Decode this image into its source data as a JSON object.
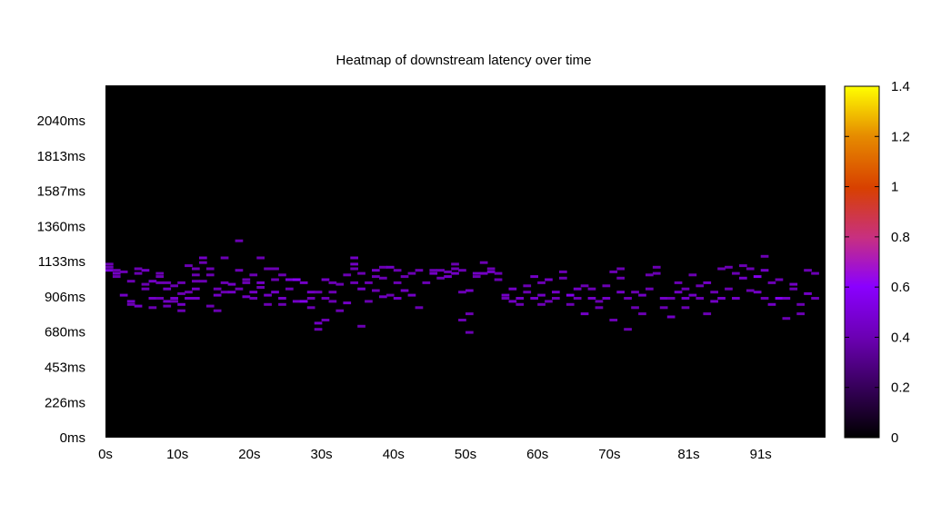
{
  "chart_data": {
    "type": "heatmap",
    "title": "Heatmap of downstream latency over time",
    "xlabel": "",
    "ylabel": "",
    "x_unit": "s",
    "y_unit": "ms",
    "xlim": [
      0,
      100
    ],
    "ylim": [
      0,
      2268
    ],
    "x_ticks": [
      "0s",
      "10s",
      "20s",
      "30s",
      "40s",
      "50s",
      "60s",
      "70s",
      "81s",
      "91s"
    ],
    "x_tick_values": [
      0,
      10,
      20,
      30,
      40,
      50,
      60,
      70,
      81,
      91
    ],
    "y_ticks": [
      "0ms",
      "226ms",
      "453ms",
      "680ms",
      "906ms",
      "1133ms",
      "1360ms",
      "1587ms",
      "1813ms",
      "2040ms"
    ],
    "y_tick_values": [
      0,
      226,
      453,
      680,
      906,
      1133,
      1360,
      1587,
      1813,
      2040
    ],
    "colorbar": {
      "range": [
        0,
        1.4
      ],
      "ticks": [
        "0",
        "0.2",
        "0.4",
        "0.6",
        "0.8",
        "1",
        "1.2",
        "1.4"
      ],
      "tick_values": [
        0,
        0.2,
        0.4,
        0.6,
        0.8,
        1.0,
        1.2,
        1.4
      ],
      "colormap": [
        "#000000",
        "#7a00c8",
        "#c83200",
        "#e68c00",
        "#ffff00"
      ]
    },
    "cell_width_s": 1,
    "cell_height_ms": 12,
    "background_color": "#000000",
    "cells": [
      [
        0,
        1100,
        0.4
      ],
      [
        0,
        1120,
        0.4
      ],
      [
        0,
        1080,
        0.5
      ],
      [
        1,
        1060,
        0.45
      ],
      [
        1,
        1080,
        0.4
      ],
      [
        1,
        1040,
        0.4
      ],
      [
        2,
        1070,
        0.4
      ],
      [
        2,
        920,
        0.45
      ],
      [
        3,
        880,
        0.45
      ],
      [
        3,
        860,
        0.4
      ],
      [
        3,
        1010,
        0.4
      ],
      [
        4,
        850,
        0.45
      ],
      [
        4,
        1060,
        0.4
      ],
      [
        4,
        1090,
        0.4
      ],
      [
        5,
        1080,
        0.45
      ],
      [
        5,
        990,
        0.4
      ],
      [
        5,
        960,
        0.4
      ],
      [
        6,
        900,
        0.45
      ],
      [
        6,
        840,
        0.4
      ],
      [
        6,
        1010,
        0.45
      ],
      [
        7,
        900,
        0.4
      ],
      [
        7,
        1000,
        0.4
      ],
      [
        7,
        1040,
        0.4
      ],
      [
        7,
        1060,
        0.4
      ],
      [
        8,
        880,
        0.45
      ],
      [
        8,
        850,
        0.4
      ],
      [
        8,
        960,
        0.45
      ],
      [
        8,
        1000,
        0.4
      ],
      [
        9,
        900,
        0.45
      ],
      [
        9,
        880,
        0.4
      ],
      [
        9,
        980,
        0.4
      ],
      [
        10,
        820,
        0.4
      ],
      [
        10,
        860,
        0.45
      ],
      [
        10,
        930,
        0.4
      ],
      [
        10,
        1000,
        0.4
      ],
      [
        11,
        900,
        0.45
      ],
      [
        11,
        940,
        0.4
      ],
      [
        11,
        1110,
        0.4
      ],
      [
        12,
        960,
        0.45
      ],
      [
        12,
        1050,
        0.4
      ],
      [
        12,
        1010,
        0.4
      ],
      [
        12,
        1090,
        0.4
      ],
      [
        12,
        900,
        0.45
      ],
      [
        13,
        1160,
        0.45
      ],
      [
        13,
        1010,
        0.4
      ],
      [
        13,
        1130,
        0.4
      ],
      [
        14,
        1050,
        0.4
      ],
      [
        14,
        1090,
        0.4
      ],
      [
        14,
        850,
        0.4
      ],
      [
        15,
        920,
        0.45
      ],
      [
        15,
        960,
        0.4
      ],
      [
        15,
        820,
        0.4
      ],
      [
        16,
        940,
        0.4
      ],
      [
        16,
        1000,
        0.4
      ],
      [
        16,
        1160,
        0.4
      ],
      [
        17,
        940,
        0.45
      ],
      [
        17,
        990,
        0.45
      ],
      [
        18,
        960,
        0.4
      ],
      [
        18,
        1080,
        0.4
      ],
      [
        18,
        1270,
        0.4
      ],
      [
        19,
        910,
        0.45
      ],
      [
        19,
        1020,
        0.4
      ],
      [
        19,
        1000,
        0.4
      ],
      [
        20,
        940,
        0.45
      ],
      [
        20,
        1050,
        0.4
      ],
      [
        20,
        900,
        0.4
      ],
      [
        21,
        1000,
        0.45
      ],
      [
        21,
        970,
        0.4
      ],
      [
        21,
        1160,
        0.4
      ],
      [
        22,
        920,
        0.45
      ],
      [
        22,
        1090,
        0.4
      ],
      [
        22,
        860,
        0.4
      ],
      [
        23,
        1020,
        0.4
      ],
      [
        23,
        940,
        0.45
      ],
      [
        23,
        1090,
        0.4
      ],
      [
        24,
        1050,
        0.4
      ],
      [
        24,
        900,
        0.45
      ],
      [
        24,
        860,
        0.4
      ],
      [
        25,
        1020,
        0.5
      ],
      [
        25,
        960,
        0.4
      ],
      [
        26,
        1020,
        0.6
      ],
      [
        26,
        880,
        0.45
      ],
      [
        27,
        880,
        0.55
      ],
      [
        27,
        1000,
        0.45
      ],
      [
        28,
        940,
        0.45
      ],
      [
        28,
        900,
        0.4
      ],
      [
        28,
        840,
        0.4
      ],
      [
        29,
        740,
        0.45
      ],
      [
        29,
        700,
        0.4
      ],
      [
        29,
        940,
        0.4
      ],
      [
        30,
        760,
        0.4
      ],
      [
        30,
        1020,
        0.45
      ],
      [
        30,
        900,
        0.4
      ],
      [
        31,
        940,
        0.4
      ],
      [
        31,
        880,
        0.4
      ],
      [
        31,
        1000,
        0.4
      ],
      [
        32,
        990,
        0.4
      ],
      [
        32,
        820,
        0.4
      ],
      [
        33,
        1050,
        0.4
      ],
      [
        33,
        870,
        0.45
      ],
      [
        34,
        1120,
        0.45
      ],
      [
        34,
        1160,
        0.45
      ],
      [
        34,
        1090,
        0.4
      ],
      [
        34,
        1000,
        0.4
      ],
      [
        35,
        720,
        0.4
      ],
      [
        35,
        960,
        0.45
      ],
      [
        35,
        1060,
        0.4
      ],
      [
        36,
        880,
        0.4
      ],
      [
        36,
        1000,
        0.4
      ],
      [
        37,
        1080,
        0.45
      ],
      [
        37,
        1040,
        0.4
      ],
      [
        37,
        950,
        0.4
      ],
      [
        38,
        910,
        0.45
      ],
      [
        38,
        1100,
        0.4
      ],
      [
        38,
        1030,
        0.4
      ],
      [
        39,
        1100,
        0.45
      ],
      [
        39,
        920,
        0.4
      ],
      [
        40,
        1000,
        0.4
      ],
      [
        40,
        900,
        0.45
      ],
      [
        40,
        1080,
        0.4
      ],
      [
        41,
        950,
        0.45
      ],
      [
        41,
        1040,
        0.4
      ],
      [
        42,
        1060,
        0.4
      ],
      [
        42,
        920,
        0.45
      ],
      [
        43,
        1080,
        0.4
      ],
      [
        43,
        840,
        0.4
      ],
      [
        44,
        1000,
        0.4
      ],
      [
        45,
        1060,
        0.45
      ],
      [
        45,
        1080,
        0.4
      ],
      [
        46,
        1080,
        0.4
      ],
      [
        46,
        1030,
        0.4
      ],
      [
        47,
        1040,
        0.45
      ],
      [
        47,
        1070,
        0.4
      ],
      [
        48,
        1060,
        0.45
      ],
      [
        48,
        1120,
        0.4
      ],
      [
        48,
        1090,
        0.4
      ],
      [
        49,
        1080,
        0.4
      ],
      [
        49,
        940,
        0.4
      ],
      [
        49,
        760,
        0.4
      ],
      [
        50,
        950,
        0.45
      ],
      [
        50,
        680,
        0.4
      ],
      [
        50,
        800,
        0.4
      ],
      [
        51,
        1060,
        0.45
      ],
      [
        51,
        1040,
        0.4
      ],
      [
        52,
        1060,
        0.45
      ],
      [
        52,
        1130,
        0.4
      ],
      [
        53,
        1070,
        0.45
      ],
      [
        53,
        1090,
        0.4
      ],
      [
        54,
        1060,
        0.4
      ],
      [
        54,
        1020,
        0.4
      ],
      [
        55,
        920,
        0.45
      ],
      [
        55,
        900,
        0.4
      ],
      [
        56,
        960,
        0.45
      ],
      [
        56,
        880,
        0.45
      ],
      [
        57,
        900,
        0.45
      ],
      [
        57,
        860,
        0.4
      ],
      [
        58,
        940,
        0.4
      ],
      [
        58,
        980,
        0.4
      ],
      [
        59,
        900,
        0.45
      ],
      [
        59,
        1040,
        0.45
      ],
      [
        60,
        920,
        0.45
      ],
      [
        60,
        1000,
        0.4
      ],
      [
        60,
        860,
        0.4
      ],
      [
        61,
        880,
        0.4
      ],
      [
        61,
        1020,
        0.45
      ],
      [
        62,
        940,
        0.45
      ],
      [
        62,
        900,
        0.4
      ],
      [
        63,
        1070,
        0.4
      ],
      [
        63,
        1030,
        0.4
      ],
      [
        64,
        920,
        0.55
      ],
      [
        64,
        860,
        0.4
      ],
      [
        65,
        960,
        0.45
      ],
      [
        65,
        900,
        0.4
      ],
      [
        66,
        800,
        0.45
      ],
      [
        66,
        980,
        0.4
      ],
      [
        67,
        900,
        0.45
      ],
      [
        67,
        960,
        0.4
      ],
      [
        68,
        880,
        0.4
      ],
      [
        68,
        840,
        0.4
      ],
      [
        69,
        980,
        0.4
      ],
      [
        69,
        900,
        0.45
      ],
      [
        70,
        760,
        0.4
      ],
      [
        70,
        1070,
        0.4
      ],
      [
        71,
        1090,
        0.4
      ],
      [
        71,
        940,
        0.45
      ],
      [
        71,
        1030,
        0.4
      ],
      [
        72,
        700,
        0.4
      ],
      [
        72,
        900,
        0.4
      ],
      [
        73,
        940,
        0.4
      ],
      [
        73,
        840,
        0.4
      ],
      [
        74,
        800,
        0.4
      ],
      [
        74,
        920,
        0.45
      ],
      [
        75,
        1050,
        0.4
      ],
      [
        75,
        960,
        0.4
      ],
      [
        76,
        1100,
        0.4
      ],
      [
        76,
        1060,
        0.4
      ],
      [
        77,
        900,
        0.45
      ],
      [
        77,
        840,
        0.4
      ],
      [
        78,
        780,
        0.45
      ],
      [
        78,
        900,
        0.4
      ],
      [
        79,
        1000,
        0.4
      ],
      [
        79,
        940,
        0.45
      ],
      [
        80,
        900,
        0.45
      ],
      [
        80,
        840,
        0.4
      ],
      [
        80,
        960,
        0.4
      ],
      [
        81,
        1050,
        0.4
      ],
      [
        81,
        920,
        0.45
      ],
      [
        82,
        980,
        0.4
      ],
      [
        82,
        900,
        0.4
      ],
      [
        83,
        800,
        0.4
      ],
      [
        83,
        1000,
        0.45
      ],
      [
        84,
        880,
        0.45
      ],
      [
        84,
        940,
        0.4
      ],
      [
        85,
        1090,
        0.4
      ],
      [
        85,
        900,
        0.45
      ],
      [
        86,
        960,
        0.4
      ],
      [
        86,
        1100,
        0.4
      ],
      [
        87,
        1060,
        0.4
      ],
      [
        87,
        900,
        0.45
      ],
      [
        88,
        1030,
        0.45
      ],
      [
        88,
        1110,
        0.4
      ],
      [
        89,
        950,
        0.4
      ],
      [
        89,
        1090,
        0.4
      ],
      [
        90,
        1040,
        0.55
      ],
      [
        90,
        940,
        0.45
      ],
      [
        91,
        900,
        0.4
      ],
      [
        91,
        1170,
        0.4
      ],
      [
        91,
        1080,
        0.45
      ],
      [
        92,
        860,
        0.45
      ],
      [
        92,
        1000,
        0.4
      ],
      [
        93,
        900,
        0.55
      ],
      [
        93,
        1020,
        0.4
      ],
      [
        94,
        900,
        0.45
      ],
      [
        94,
        770,
        0.4
      ],
      [
        95,
        990,
        0.45
      ],
      [
        95,
        960,
        0.4
      ],
      [
        96,
        860,
        0.4
      ],
      [
        96,
        800,
        0.4
      ],
      [
        97,
        930,
        0.45
      ],
      [
        97,
        1080,
        0.4
      ],
      [
        98,
        900,
        0.4
      ],
      [
        98,
        1060,
        0.4
      ]
    ]
  }
}
